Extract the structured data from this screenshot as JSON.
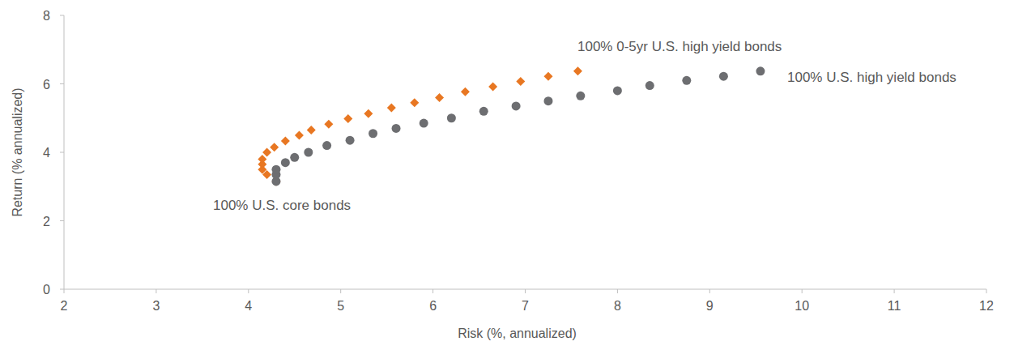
{
  "chart_data": {
    "type": "scatter",
    "x_label": "Risk (%, annualized)",
    "y_label": "Return (% annualized)",
    "xlim": [
      2,
      12
    ],
    "xticks": [
      2,
      3,
      4,
      5,
      6,
      7,
      8,
      9,
      10,
      11,
      12
    ],
    "ylim": [
      0,
      8
    ],
    "yticks": [
      0,
      2,
      4,
      6,
      8
    ],
    "grid": false,
    "annotations": [
      "100% 0-5yr U.S. high yield bonds",
      "100% U.S. high yield bonds",
      "100% U.S. core bonds"
    ],
    "series": [
      {
        "color": "#e87722",
        "marker": "diamond",
        "x": [
          4.3,
          4.2,
          4.15,
          4.15,
          4.15,
          4.2,
          4.28,
          4.4,
          4.55,
          4.68,
          4.87,
          5.08,
          5.3,
          5.55,
          5.8,
          6.07,
          6.35,
          6.65,
          6.95,
          7.25,
          7.57
        ],
        "values": [
          3.15,
          3.35,
          3.5,
          3.65,
          3.8,
          4.0,
          4.15,
          4.33,
          4.5,
          4.65,
          4.82,
          4.98,
          5.13,
          5.3,
          5.45,
          5.6,
          5.77,
          5.92,
          6.07,
          6.22,
          6.37
        ]
      },
      {
        "color": "#6d6e71",
        "marker": "circle",
        "x": [
          4.3,
          4.3,
          4.3,
          4.4,
          4.5,
          4.65,
          4.85,
          5.1,
          5.35,
          5.6,
          5.9,
          6.2,
          6.55,
          6.9,
          7.25,
          7.6,
          8.0,
          8.35,
          8.75,
          9.15,
          9.55
        ],
        "values": [
          3.15,
          3.35,
          3.5,
          3.7,
          3.85,
          4.0,
          4.2,
          4.35,
          4.55,
          4.7,
          4.85,
          5.0,
          5.2,
          5.35,
          5.5,
          5.65,
          5.8,
          5.95,
          6.1,
          6.22,
          6.37
        ]
      }
    ]
  }
}
